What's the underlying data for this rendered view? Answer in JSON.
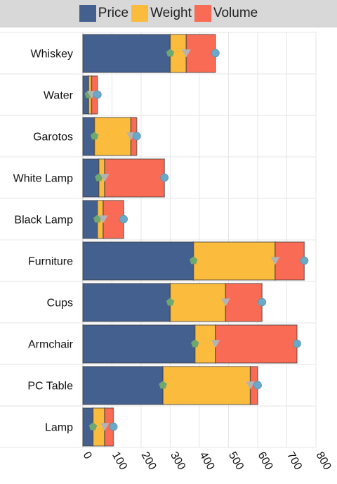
{
  "legend": {
    "items": [
      {
        "label": "Price",
        "color": "#44608f"
      },
      {
        "label": "Weight",
        "color": "#fbbc3d"
      },
      {
        "label": "Volume",
        "color": "#fa6b55"
      }
    ]
  },
  "chart_data": {
    "type": "bar",
    "orientation": "horizontal",
    "stacked": true,
    "categories": [
      "Whiskey",
      "Water",
      "Garotos",
      "White Lamp",
      "Black Lamp",
      "Furniture",
      "Cups",
      "Armchair",
      "PC Table",
      "Lamp"
    ],
    "series": [
      {
        "name": "Price",
        "color": "#44608f",
        "values": [
          300,
          20,
          40,
          55,
          50,
          380,
          300,
          385,
          275,
          35
        ]
      },
      {
        "name": "Weight",
        "color": "#fbbc3d",
        "values": [
          55,
          10,
          125,
          20,
          20,
          280,
          190,
          70,
          300,
          40
        ]
      },
      {
        "name": "Volume",
        "color": "#fa6b55",
        "values": [
          100,
          20,
          20,
          205,
          70,
          100,
          125,
          280,
          25,
          30
        ]
      }
    ],
    "markers": [
      {
        "shape": "pentagon",
        "color": "#6fa86f",
        "values": [
          300,
          20,
          40,
          55,
          50,
          380,
          300,
          385,
          275,
          35
        ]
      },
      {
        "shape": "triangle-down",
        "color": "#b3b3b3",
        "values": [
          355,
          30,
          165,
          75,
          70,
          660,
          490,
          455,
          575,
          75
        ]
      },
      {
        "shape": "circle",
        "color": "#6aaac8",
        "values": [
          455,
          50,
          185,
          280,
          140,
          760,
          615,
          735,
          600,
          105
        ]
      }
    ],
    "xlim": [
      0,
      800
    ],
    "xticks": [
      0,
      100,
      200,
      300,
      400,
      500,
      600,
      700,
      800
    ],
    "grid": true,
    "legend_position": "top"
  }
}
